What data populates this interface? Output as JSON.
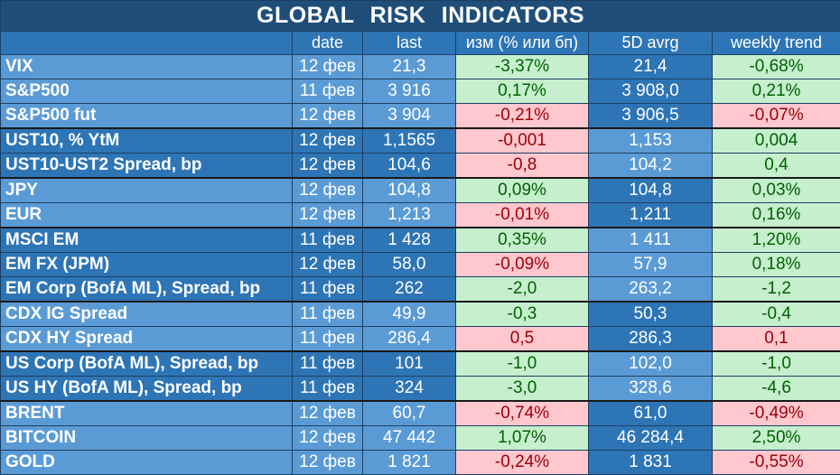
{
  "title": "GLOBAL   RISK   INDICATORS",
  "headers": [
    "",
    "date",
    "last",
    "изм (% или бп)",
    "5D avrg",
    "weekly trend"
  ],
  "colors": {
    "title_bg": "#1f4e79",
    "header_bg": "#2e75b6",
    "light_blue": "#5b9bd5",
    "dark_blue": "#2e75b6",
    "positive_bg": "#c6efce",
    "positive_text": "#006100",
    "negative_bg": "#ffc7ce",
    "negative_text": "#9c0006"
  },
  "rows": [
    {
      "name": "VIX",
      "date": "12 фев",
      "last": "21,3",
      "chg": "-3,37%",
      "chg_sign": "pos",
      "avg": "21,4",
      "wk": "-0,68%",
      "wk_sign": "pos",
      "group": "light",
      "sep": false
    },
    {
      "name": "S&P500",
      "date": "11 фев",
      "last": "3 916",
      "chg": "0,17%",
      "chg_sign": "pos",
      "avg": "3 908,0",
      "wk": "0,21%",
      "wk_sign": "pos",
      "group": "light",
      "sep": false
    },
    {
      "name": "S&P500 fut",
      "date": "12 фев",
      "last": "3 904",
      "chg": "-0,21%",
      "chg_sign": "neg",
      "avg": "3 906,5",
      "wk": "-0,07%",
      "wk_sign": "neg",
      "group": "light",
      "sep": false
    },
    {
      "name": "UST10, % YtM",
      "date": "12 фев",
      "last": "1,1565",
      "chg": "-0,001",
      "chg_sign": "neg",
      "avg": "1,153",
      "wk": "0,004",
      "wk_sign": "pos",
      "group": "dark",
      "sep": true
    },
    {
      "name": "UST10-UST2 Spread, bp",
      "date": "12 фев",
      "last": "104,6",
      "chg": "-0,8",
      "chg_sign": "neg",
      "avg": "104,2",
      "wk": "0,4",
      "wk_sign": "pos",
      "group": "dark",
      "sep": false
    },
    {
      "name": "JPY",
      "date": "12 фев",
      "last": "104,8",
      "chg": "0,09%",
      "chg_sign": "pos",
      "avg": "104,8",
      "wk": "0,03%",
      "wk_sign": "pos",
      "group": "light",
      "sep": true
    },
    {
      "name": "EUR",
      "date": "12 фев",
      "last": "1,213",
      "chg": "-0,01%",
      "chg_sign": "neg",
      "avg": "1,211",
      "wk": "0,16%",
      "wk_sign": "pos",
      "group": "light",
      "sep": false
    },
    {
      "name": "MSCI EM",
      "date": "11 фев",
      "last": "1 428",
      "chg": "0,35%",
      "chg_sign": "pos",
      "avg": "1 411",
      "wk": "1,20%",
      "wk_sign": "pos",
      "group": "dark",
      "sep": true
    },
    {
      "name": "EM FX (JPM)",
      "date": "12 фев",
      "last": "58,0",
      "chg": "-0,09%",
      "chg_sign": "neg",
      "avg": "57,9",
      "wk": "0,18%",
      "wk_sign": "pos",
      "group": "dark",
      "sep": false
    },
    {
      "name": "EM Corp (BofA ML), Spread, bp",
      "date": "11 фев",
      "last": "262",
      "chg": "-2,0",
      "chg_sign": "pos",
      "avg": "263,2",
      "wk": "-1,2",
      "wk_sign": "pos",
      "group": "dark",
      "sep": false
    },
    {
      "name": "CDX IG Spread",
      "date": "11 фев",
      "last": "49,9",
      "chg": "-0,3",
      "chg_sign": "pos",
      "avg": "50,3",
      "wk": "-0,4",
      "wk_sign": "pos",
      "group": "light",
      "sep": true
    },
    {
      "name": "CDX HY Spread",
      "date": "11 фев",
      "last": "286,4",
      "chg": "0,5",
      "chg_sign": "neg",
      "avg": "286,3",
      "wk": "0,1",
      "wk_sign": "neg",
      "group": "light",
      "sep": false
    },
    {
      "name": "US Corp (BofA ML), Spread, bp",
      "date": "11 фев",
      "last": "101",
      "chg": "-1,0",
      "chg_sign": "pos",
      "avg": "102,0",
      "wk": "-1,0",
      "wk_sign": "pos",
      "group": "dark",
      "sep": true
    },
    {
      "name": "US HY (BofA ML), Spread, bp",
      "date": "11 фев",
      "last": "324",
      "chg": "-3,0",
      "chg_sign": "pos",
      "avg": "328,6",
      "wk": "-4,6",
      "wk_sign": "pos",
      "group": "dark",
      "sep": false
    },
    {
      "name": "BRENT",
      "date": "12 фев",
      "last": "60,7",
      "chg": "-0,74%",
      "chg_sign": "neg",
      "avg": "61,0",
      "wk": "-0,49%",
      "wk_sign": "neg",
      "group": "light",
      "sep": true
    },
    {
      "name": "BITCOIN",
      "date": "12 фев",
      "last": "47 442",
      "chg": "1,07%",
      "chg_sign": "pos",
      "avg": "46 284,4",
      "wk": "2,50%",
      "wk_sign": "pos",
      "group": "light",
      "sep": false
    },
    {
      "name": "GOLD",
      "date": "12 фев",
      "last": "1 821",
      "chg": "-0,24%",
      "chg_sign": "neg",
      "avg": "1 831",
      "wk": "-0,55%",
      "wk_sign": "neg",
      "group": "light",
      "sep": false
    }
  ]
}
